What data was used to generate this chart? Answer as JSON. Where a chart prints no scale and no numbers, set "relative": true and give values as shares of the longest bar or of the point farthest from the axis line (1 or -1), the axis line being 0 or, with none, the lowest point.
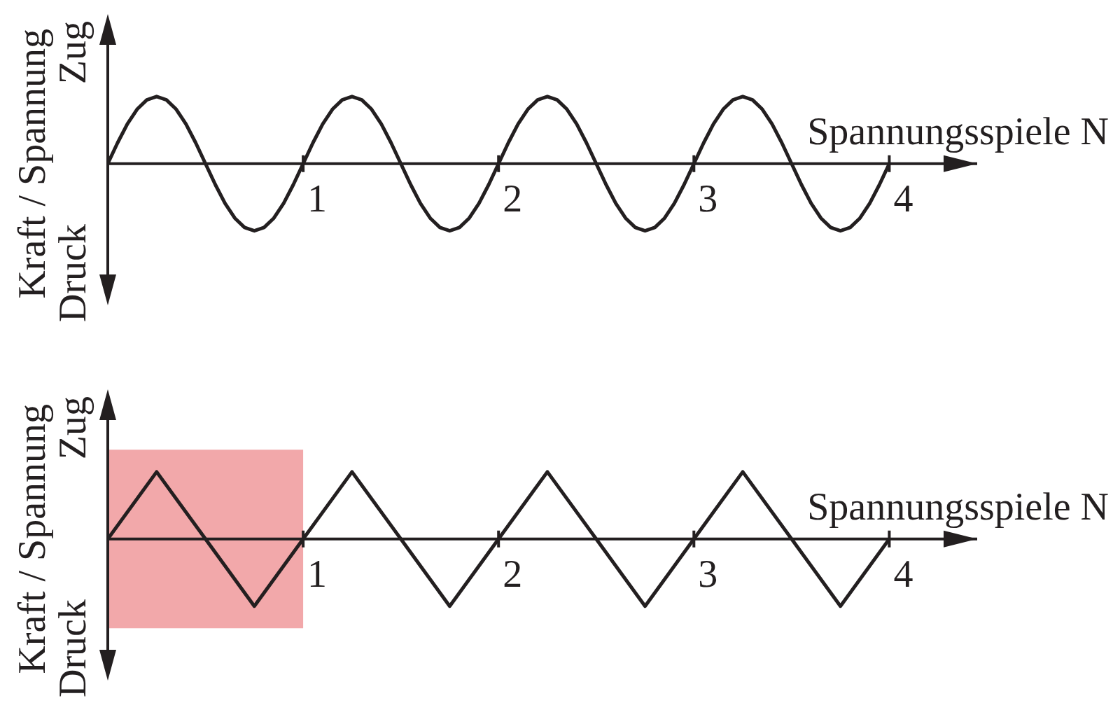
{
  "chart_data": [
    {
      "type": "line",
      "relative": true,
      "xlabel": "Spannungsspiele N",
      "ylabel": "Kraft / Spannung",
      "annotations": [
        "Zug",
        "Druck"
      ],
      "marker": "none",
      "xlim": [
        0,
        4.45
      ],
      "xticks": [
        1,
        2,
        3,
        4
      ],
      "x": [
        0,
        0.05,
        0.1,
        0.15,
        0.2,
        0.25,
        0.3,
        0.35,
        0.4,
        0.45,
        0.5,
        0.55,
        0.6,
        0.65,
        0.7,
        0.75,
        0.8,
        0.85,
        0.9,
        0.95,
        1,
        1.05,
        1.1,
        1.15,
        1.2,
        1.25,
        1.3,
        1.35,
        1.4,
        1.45,
        1.5,
        1.55,
        1.6,
        1.65,
        1.7,
        1.75,
        1.8,
        1.85,
        1.9,
        1.95,
        2,
        2.05,
        2.1,
        2.15,
        2.2,
        2.25,
        2.3,
        2.35,
        2.4,
        2.45,
        2.5,
        2.55,
        2.6,
        2.65,
        2.7,
        2.75,
        2.8,
        2.85,
        2.9,
        2.95,
        3,
        3.05,
        3.1,
        3.15,
        3.2,
        3.25,
        3.3,
        3.35,
        3.4,
        3.45,
        3.5,
        3.55,
        3.6,
        3.65,
        3.7,
        3.75,
        3.8,
        3.85,
        3.9,
        3.95,
        4
      ],
      "series": [
        {
          "color": "#231f20",
          "values": [
            0,
            0.31,
            0.59,
            0.81,
            0.95,
            1,
            0.95,
            0.81,
            0.59,
            0.31,
            0,
            -0.31,
            -0.59,
            -0.81,
            -0.95,
            -1,
            -0.95,
            -0.81,
            -0.59,
            -0.31,
            0,
            0.31,
            0.59,
            0.81,
            0.95,
            1,
            0.95,
            0.81,
            0.59,
            0.31,
            0,
            -0.31,
            -0.59,
            -0.81,
            -0.95,
            -1,
            -0.95,
            -0.81,
            -0.59,
            -0.31,
            0,
            0.31,
            0.59,
            0.81,
            0.95,
            1,
            0.95,
            0.81,
            0.59,
            0.31,
            0,
            -0.31,
            -0.59,
            -0.81,
            -0.95,
            -1,
            -0.95,
            -0.81,
            -0.59,
            -0.31,
            0,
            0.31,
            0.59,
            0.81,
            0.95,
            1,
            0.95,
            0.81,
            0.59,
            0.31,
            0,
            -0.31,
            -0.59,
            -0.81,
            -0.95,
            -1,
            -0.95,
            -0.81,
            -0.59,
            -0.31,
            0
          ]
        }
      ]
    },
    {
      "type": "line",
      "relative": true,
      "xlabel": "Spannungsspiele N",
      "ylabel": "Kraft / Spannung",
      "annotations": [
        "Zug",
        "Druck"
      ],
      "marker": "none",
      "xlim": [
        0,
        4.45
      ],
      "xticks": [
        1,
        2,
        3,
        4
      ],
      "x": [
        0,
        0.25,
        0.5,
        0.75,
        1,
        1.25,
        1.5,
        1.75,
        2,
        2.25,
        2.5,
        2.75,
        3,
        3.25,
        3.5,
        3.75,
        4
      ],
      "series": [
        {
          "color": "#231f20",
          "values": [
            0,
            1,
            0,
            -1,
            0,
            1,
            0,
            -1,
            0,
            1,
            0,
            -1,
            0,
            1,
            0,
            -1,
            0
          ]
        }
      ],
      "bands": [
        {
          "axis": "x",
          "from": 0,
          "to": 1,
          "color": "#f2a8aa"
        }
      ]
    }
  ]
}
